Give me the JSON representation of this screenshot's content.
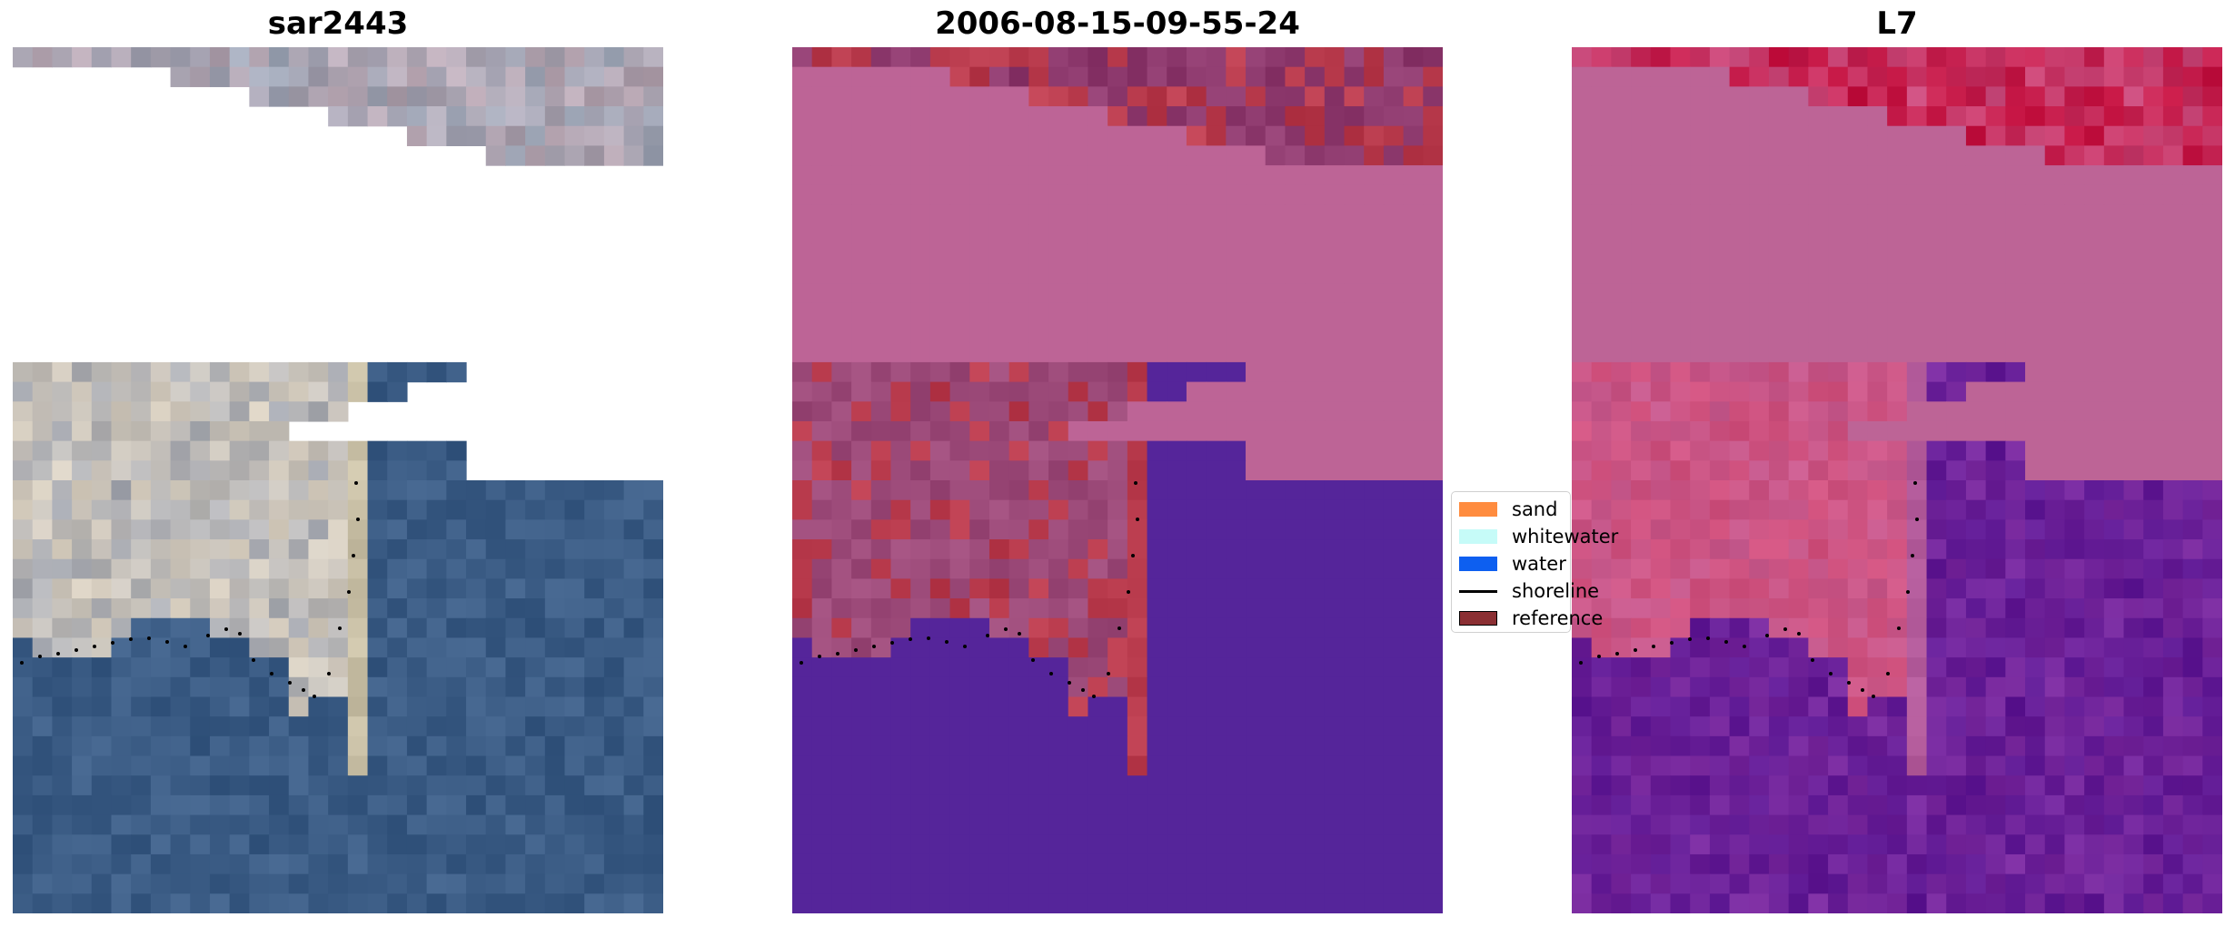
{
  "panels": [
    {
      "title": "sar2443",
      "palette": "rgb"
    },
    {
      "title": "2006-08-15-09-55-24",
      "palette": "class"
    },
    {
      "title": "L7",
      "palette": "index"
    }
  ],
  "legend": {
    "items": [
      {
        "label": "sand",
        "kind": "patch",
        "color": "#ff8c3f"
      },
      {
        "label": "whitewater",
        "kind": "patch",
        "color": "#c6fbf8"
      },
      {
        "label": "water",
        "kind": "patch",
        "color": "#0d5ff0"
      },
      {
        "label": "shoreline",
        "kind": "line",
        "color": "#000000"
      },
      {
        "label": "reference",
        "kind": "patch",
        "color": "#8b2f33"
      }
    ]
  },
  "colors": {
    "rgb_water": "#3b5c85",
    "rgb_sand": "#b5b09a",
    "rgb_nodata_blue": "#2b3f9e",
    "class_water": "#55259a",
    "class_land": "#bd6496",
    "class_red": "#b93b4d",
    "class_dark": "#6b2278",
    "index_land": "#bd6496",
    "index_water": "#5d1893",
    "index_red": "#c2103e"
  }
}
